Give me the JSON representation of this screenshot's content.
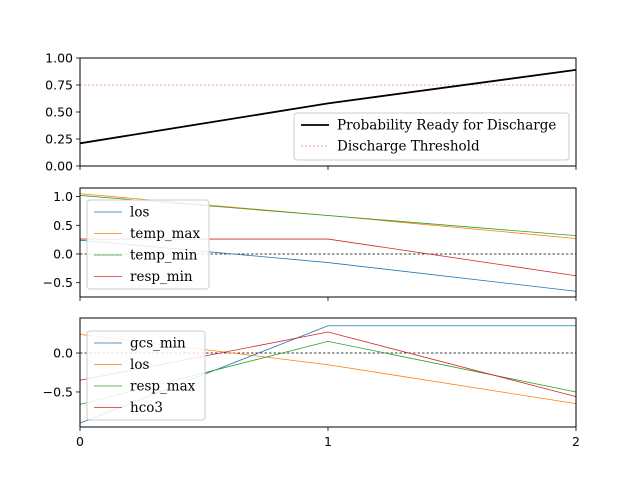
{
  "chart_data": [
    {
      "type": "line",
      "x": [
        0,
        1,
        2
      ],
      "xticks": [
        0,
        1,
        2
      ],
      "xtick_labels_visible": false,
      "ylim": [
        0,
        1
      ],
      "yticks": [
        0.0,
        0.25,
        0.5,
        0.75,
        1.0
      ],
      "ytick_labels": [
        "0.00",
        "0.25",
        "0.50",
        "0.75",
        "1.00"
      ],
      "legend_position": "lower-right",
      "series": [
        {
          "name": "Probability Ready for Discharge",
          "values": [
            0.21,
            0.58,
            0.89
          ],
          "color": "#000000",
          "style": "solid",
          "width": "thick"
        }
      ],
      "hlines": [
        {
          "name": "Discharge Threshold",
          "y": 0.75,
          "color": "#f08080",
          "style": "dashed"
        }
      ]
    },
    {
      "type": "line",
      "x": [
        0,
        1,
        2
      ],
      "xticks": [
        0,
        1,
        2
      ],
      "xtick_labels_visible": false,
      "ylim": [
        -0.75,
        1.15
      ],
      "yticks": [
        -0.5,
        0.0,
        0.5,
        1.0
      ],
      "ytick_labels": [
        "−0.5",
        "0.0",
        "0.5",
        "1.0"
      ],
      "legend_position": "lower-left",
      "zero_line": true,
      "series": [
        {
          "name": "los",
          "values": [
            0.24,
            -0.15,
            -0.65
          ],
          "color": "#1f77b4"
        },
        {
          "name": "temp_max",
          "values": [
            1.05,
            0.67,
            0.27
          ],
          "color": "#ff7f0e"
        },
        {
          "name": "temp_min",
          "values": [
            1.02,
            0.67,
            0.32
          ],
          "color": "#2ca02c"
        },
        {
          "name": "resp_min",
          "values": [
            0.26,
            0.26,
            -0.38
          ],
          "color": "#d62728"
        }
      ]
    },
    {
      "type": "line",
      "x": [
        0,
        1,
        2
      ],
      "xticks": [
        0,
        1,
        2
      ],
      "xtick_labels": [
        "0",
        "1",
        "2"
      ],
      "ylim": [
        -0.95,
        0.45
      ],
      "yticks": [
        -0.5,
        0.0
      ],
      "ytick_labels": [
        "−0.5",
        "0.0"
      ],
      "legend_position": "lower-left",
      "zero_line": true,
      "series": [
        {
          "name": "gcs_min",
          "values": [
            -0.9,
            0.35,
            0.35
          ],
          "color": "#1f77b4"
        },
        {
          "name": "los",
          "values": [
            0.24,
            -0.15,
            -0.65
          ],
          "color": "#ff7f0e"
        },
        {
          "name": "resp_max",
          "values": [
            -0.66,
            0.15,
            -0.5
          ],
          "color": "#2ca02c"
        },
        {
          "name": "hco3",
          "values": [
            -0.35,
            0.27,
            -0.56
          ],
          "color": "#d62728"
        }
      ]
    }
  ]
}
